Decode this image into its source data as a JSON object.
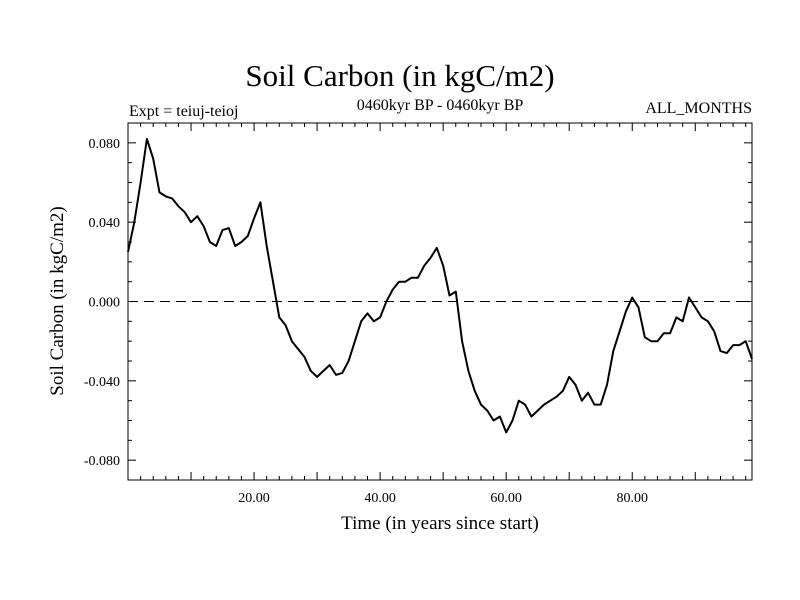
{
  "header": {
    "title": "Soil Carbon (in kgC/m2)",
    "subtitle": "0460kyr BP - 0460kyr BP",
    "left_label": "Expt = teiuj-teioj",
    "right_label": "ALL_MONTHS"
  },
  "chart_data": {
    "type": "line",
    "title": "Soil Carbon (in kgC/m2)",
    "xlabel": "Time (in years since start)",
    "ylabel": "Soil Carbon (in kgC/m2)",
    "xlim": [
      0,
      99
    ],
    "ylim": [
      -0.09,
      0.09
    ],
    "x_ticks": [
      20,
      40,
      60,
      80
    ],
    "x_tick_labels": [
      "20.00",
      "40.00",
      "60.00",
      "80.00"
    ],
    "y_ticks": [
      -0.08,
      -0.04,
      0.0,
      0.04,
      0.08
    ],
    "y_tick_labels": [
      "-0.080",
      "-0.040",
      "0.000",
      "0.040",
      "0.080"
    ],
    "zero_line": "dashed",
    "grid": false,
    "colors": {
      "line": "#000000",
      "axes": "#000000"
    },
    "series": [
      {
        "x": [
          0,
          1,
          2,
          3,
          4,
          5,
          6,
          7,
          8,
          9,
          10,
          11,
          12,
          13,
          14,
          15,
          16,
          17,
          18,
          19,
          20,
          21,
          22,
          23,
          24,
          25,
          26,
          27,
          28,
          29,
          30,
          31,
          32,
          33,
          34,
          35,
          36,
          37,
          38,
          39,
          40,
          41,
          42,
          43,
          44,
          45,
          46,
          47,
          48,
          49,
          50,
          51,
          52,
          53,
          54,
          55,
          56,
          57,
          58,
          59,
          60,
          61,
          62,
          63,
          64,
          65,
          66,
          67,
          68,
          69,
          70,
          71,
          72,
          73,
          74,
          75,
          76,
          77,
          78,
          79,
          80,
          81,
          82,
          83,
          84,
          85,
          86,
          87,
          88,
          89,
          90,
          91,
          92,
          93,
          94,
          95,
          96,
          97,
          98,
          99
        ],
        "values": [
          0.025,
          0.04,
          0.06,
          0.082,
          0.072,
          0.055,
          0.053,
          0.052,
          0.048,
          0.045,
          0.04,
          0.043,
          0.038,
          0.03,
          0.028,
          0.036,
          0.037,
          0.028,
          0.03,
          0.033,
          0.042,
          0.05,
          0.028,
          0.01,
          -0.008,
          -0.012,
          -0.02,
          -0.024,
          -0.028,
          -0.035,
          -0.038,
          -0.035,
          -0.032,
          -0.037,
          -0.036,
          -0.03,
          -0.02,
          -0.01,
          -0.006,
          -0.01,
          -0.008,
          0.0,
          0.006,
          0.01,
          0.01,
          0.012,
          0.012,
          0.018,
          0.022,
          0.027,
          0.018,
          0.003,
          0.005,
          -0.02,
          -0.035,
          -0.045,
          -0.052,
          -0.055,
          -0.06,
          -0.058,
          -0.066,
          -0.06,
          -0.05,
          -0.052,
          -0.058,
          -0.055,
          -0.052,
          -0.05,
          -0.048,
          -0.045,
          -0.038,
          -0.042,
          -0.05,
          -0.046,
          -0.052,
          -0.052,
          -0.042,
          -0.025,
          -0.015,
          -0.005,
          0.002,
          -0.003,
          -0.018,
          -0.02,
          -0.02,
          -0.016,
          -0.016,
          -0.008,
          -0.01,
          0.002,
          -0.003,
          -0.008,
          -0.01,
          -0.015,
          -0.025,
          -0.026,
          -0.022,
          -0.022,
          -0.02,
          -0.029
        ]
      }
    ]
  }
}
